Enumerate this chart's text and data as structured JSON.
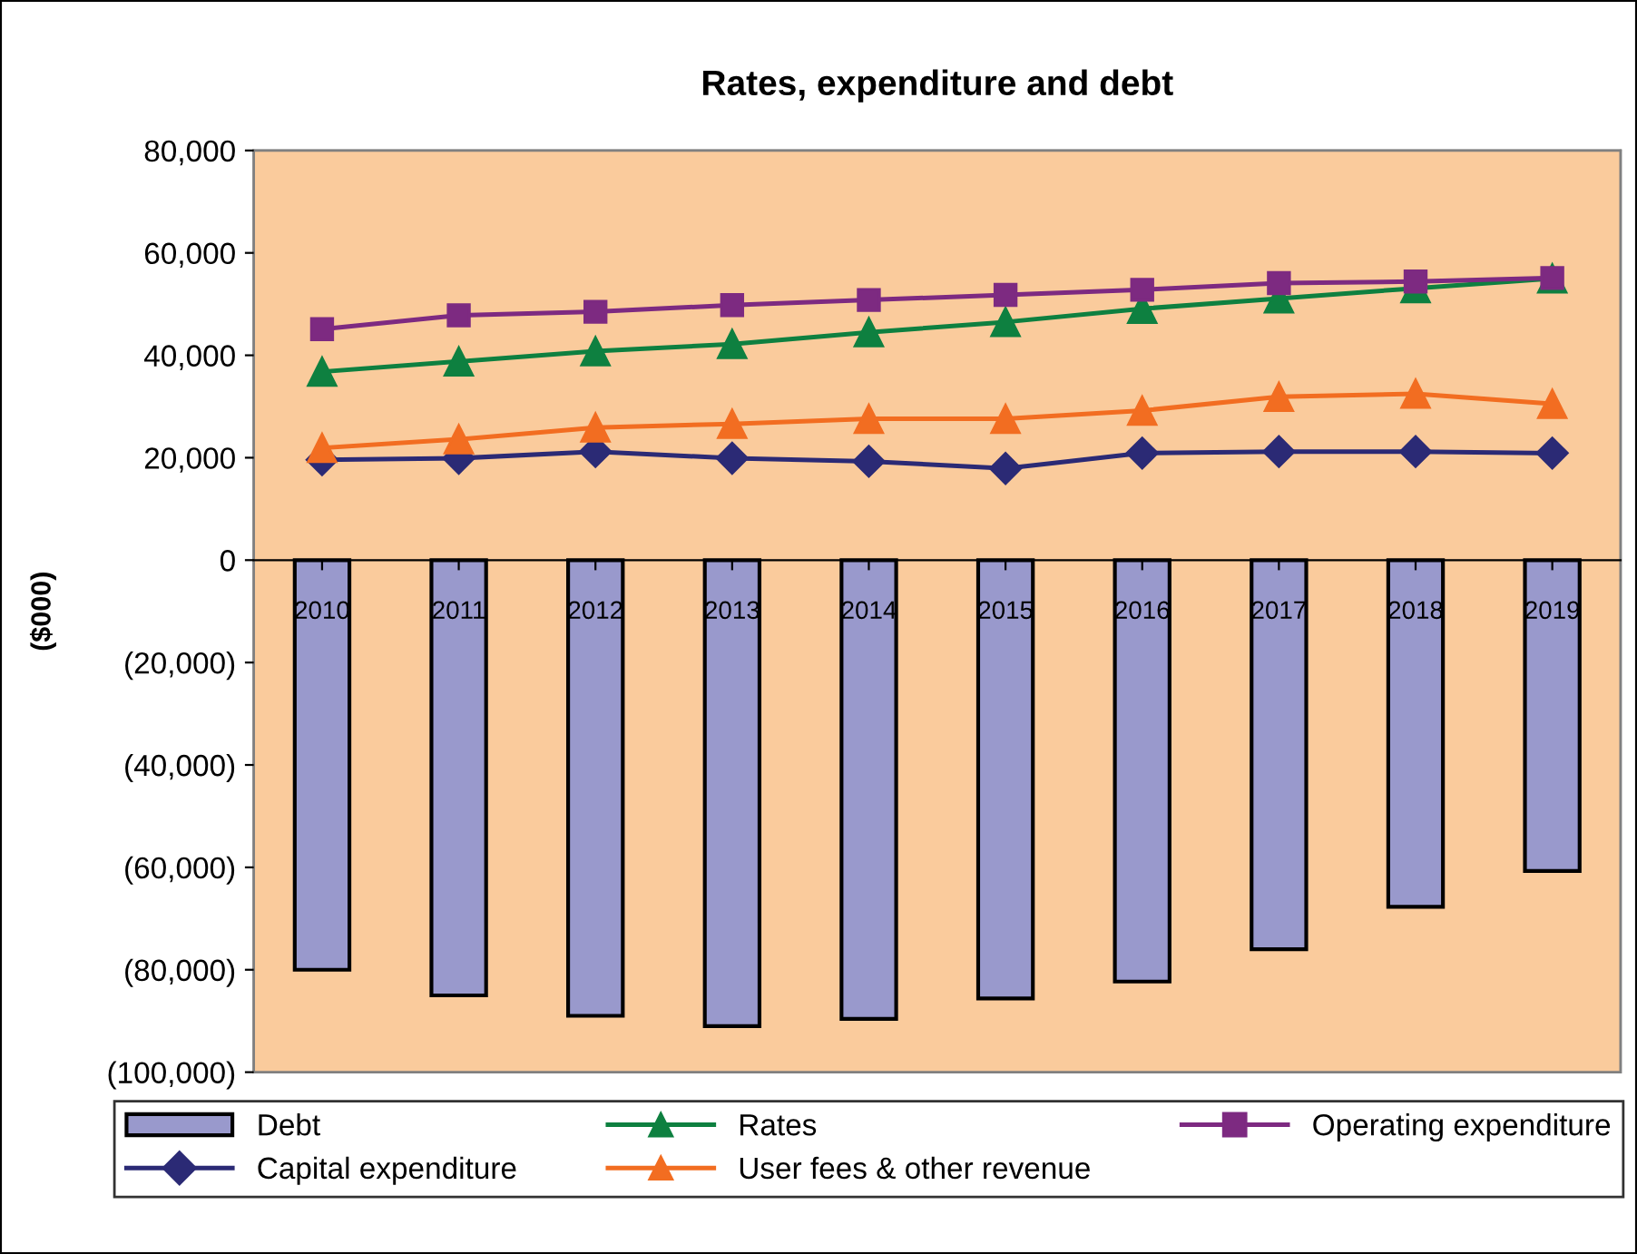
{
  "chart_data": {
    "type": "line",
    "title": "Rates, expenditure and debt",
    "ylabel": "($000)",
    "categories": [
      "2010",
      "2011",
      "2012",
      "2013",
      "2014",
      "2015",
      "2016",
      "2017",
      "2018",
      "2019"
    ],
    "series": [
      {
        "name": "Debt",
        "type": "bar",
        "color": "#9999cc",
        "values": [
          -80000,
          -85000,
          -89000,
          -91000,
          -89600,
          -85600,
          -82300,
          -76000,
          -67700,
          -60700
        ]
      },
      {
        "name": "Rates",
        "color": "#0e8040",
        "marker": "triangle",
        "values": [
          36800,
          38800,
          40800,
          42200,
          44500,
          46500,
          49100,
          51100,
          53100,
          55000
        ]
      },
      {
        "name": "Operating expenditure",
        "color": "#7d2a81",
        "marker": "square",
        "values": [
          45100,
          47800,
          48500,
          49800,
          50800,
          51800,
          52800,
          54100,
          54400,
          55100
        ]
      },
      {
        "name": "Capital expenditure",
        "color": "#2b2a75",
        "marker": "diamond",
        "values": [
          19600,
          19900,
          21200,
          19900,
          19300,
          17900,
          20900,
          21200,
          21200,
          20900
        ]
      },
      {
        "name": "User fees & other revenue",
        "color": "#f26d21",
        "marker": "triangle",
        "values": [
          21900,
          23600,
          25900,
          26600,
          27600,
          27600,
          29200,
          31900,
          32500,
          30500
        ]
      }
    ],
    "ylim": [
      -100000,
      80000
    ],
    "yticks": [
      {
        "value": -100000,
        "label": "(100,000)"
      },
      {
        "value": -80000,
        "label": "(80,000)"
      },
      {
        "value": -60000,
        "label": "(60,000)"
      },
      {
        "value": -40000,
        "label": "(40,000)"
      },
      {
        "value": -20000,
        "label": "(20,000)"
      },
      {
        "value": 0,
        "label": "0"
      },
      {
        "value": 20000,
        "label": "20,000"
      },
      {
        "value": 40000,
        "label": "40,000"
      },
      {
        "value": 60000,
        "label": "60,000"
      },
      {
        "value": 80000,
        "label": "80,000"
      }
    ],
    "grid": false,
    "legend": "bottom",
    "line_style": "solid"
  }
}
